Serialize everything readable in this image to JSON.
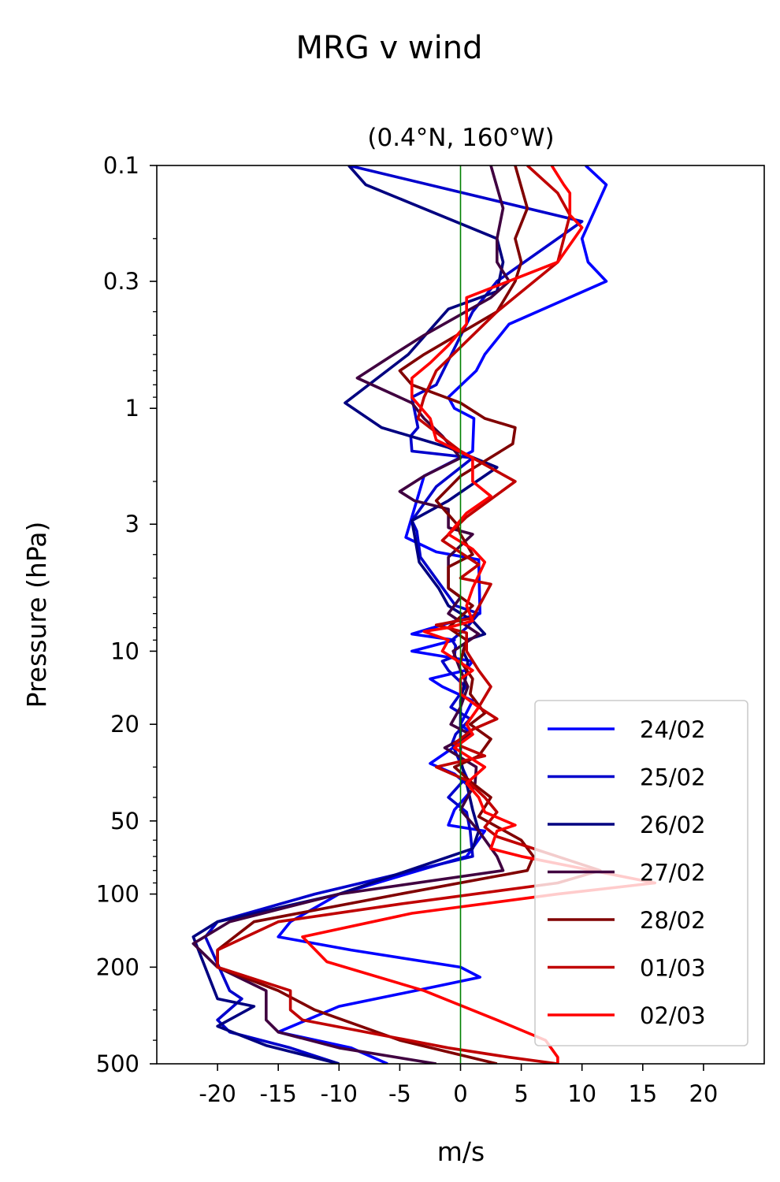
{
  "chart_data": {
    "type": "line",
    "title": "MRG v wind",
    "subtitle": "(0.4°N, 160°W)",
    "xlabel": "m/s",
    "ylabel": "Pressure (hPa)",
    "xlim": [
      -25,
      25
    ],
    "ylim": [
      500,
      0.1
    ],
    "yscale": "log",
    "x_ticks": [
      -20,
      -15,
      -10,
      -5,
      0,
      5,
      10,
      15,
      20
    ],
    "x_tick_labels": [
      "-20",
      "-15",
      "-10",
      "-5",
      "0",
      "5",
      "10",
      "15",
      "20"
    ],
    "y_ticks": [
      0.1,
      0.3,
      1,
      3,
      10,
      20,
      50,
      100,
      200,
      500
    ],
    "y_tick_labels": [
      "0.1",
      "0.3",
      "1",
      "3",
      "10",
      "20",
      "50",
      "100",
      "200",
      "500"
    ],
    "zero_line": {
      "x": 0,
      "color": "#008000"
    },
    "legend_position": "lower-right",
    "series": [
      {
        "name": "24/02",
        "color": "#0000ff",
        "points": [
          [
            10.3,
            0.1
          ],
          [
            12,
            0.12
          ],
          [
            10,
            0.2
          ],
          [
            10.5,
            0.25
          ],
          [
            12,
            0.3
          ],
          [
            4,
            0.45
          ],
          [
            2,
            0.6
          ],
          [
            1.3,
            0.7
          ],
          [
            -1,
            0.9
          ],
          [
            -0.5,
            1
          ],
          [
            1.1,
            1.1
          ],
          [
            1,
            1.5
          ],
          [
            -3,
            1.9
          ],
          [
            -4.5,
            3.4
          ],
          [
            -2,
            3.9
          ],
          [
            1.5,
            4.2
          ],
          [
            1.6,
            7
          ],
          [
            -4,
            8.5
          ],
          [
            -0.5,
            9
          ],
          [
            -4,
            10
          ],
          [
            1,
            11
          ],
          [
            0.4,
            12
          ],
          [
            -2.5,
            13
          ],
          [
            -1.5,
            14
          ],
          [
            1,
            16
          ],
          [
            0,
            20
          ],
          [
            1,
            22
          ],
          [
            -2.5,
            29
          ],
          [
            -0.5,
            32
          ],
          [
            1,
            37
          ],
          [
            -0.5,
            45
          ],
          [
            -1,
            52
          ],
          [
            2,
            55
          ],
          [
            0.5,
            70
          ],
          [
            -10,
            100
          ],
          [
            -14,
            130
          ],
          [
            -15,
            150
          ],
          [
            -9,
            170
          ],
          [
            0,
            200
          ],
          [
            1.6,
            220
          ],
          [
            -2,
            240
          ],
          [
            -10,
            290
          ],
          [
            -15,
            370
          ],
          [
            -9,
            430
          ],
          [
            -6,
            500
          ]
        ]
      },
      {
        "name": "25/02",
        "color": "#0000cc",
        "points": [
          [
            -9.2,
            0.1
          ],
          [
            10,
            0.17
          ],
          [
            3,
            0.3
          ],
          [
            1,
            0.4
          ],
          [
            -2,
            0.8
          ],
          [
            -4,
            0.9
          ],
          [
            -3.5,
            1.2
          ],
          [
            -4.1,
            1.3
          ],
          [
            -4,
            1.5
          ],
          [
            1,
            1.6
          ],
          [
            -2,
            2.1
          ],
          [
            -4,
            2.9
          ],
          [
            -3.6,
            3.2
          ],
          [
            -3.3,
            4.1
          ],
          [
            -0.4,
            6.5
          ],
          [
            1.5,
            7
          ],
          [
            0.5,
            8
          ],
          [
            -0.7,
            9
          ],
          [
            -0.4,
            9.5
          ],
          [
            -0.5,
            10.5
          ],
          [
            -1.5,
            11
          ],
          [
            -1,
            12
          ],
          [
            0.4,
            14
          ],
          [
            -0.8,
            17
          ],
          [
            0.8,
            19
          ],
          [
            -0.4,
            22
          ],
          [
            -0.7,
            24
          ],
          [
            0,
            29
          ],
          [
            0.5,
            33
          ],
          [
            -1,
            40
          ],
          [
            0.5,
            46
          ],
          [
            0.8,
            55
          ],
          [
            1,
            70
          ],
          [
            -12,
            100
          ],
          [
            -20,
            130
          ],
          [
            -21,
            150
          ],
          [
            -19,
            250
          ],
          [
            -18,
            270
          ],
          [
            -20,
            330
          ],
          [
            -19,
            370
          ],
          [
            -14,
            430
          ],
          [
            -10,
            500
          ]
        ]
      },
      {
        "name": "26/02",
        "color": "#000080",
        "points": [
          [
            -9.2,
            0.1
          ],
          [
            -7.8,
            0.12
          ],
          [
            3,
            0.2
          ],
          [
            3.5,
            0.25
          ],
          [
            3,
            0.33
          ],
          [
            -1,
            0.39
          ],
          [
            -4.3,
            0.6
          ],
          [
            -9.5,
            0.95
          ],
          [
            -6.5,
            1.2
          ],
          [
            -1,
            1.45
          ],
          [
            3,
            1.75
          ],
          [
            -1,
            2.4
          ],
          [
            -4,
            2.9
          ],
          [
            -3.8,
            3.3
          ],
          [
            -3.4,
            4.3
          ],
          [
            -1.8,
            5.5
          ],
          [
            -1,
            6.5
          ],
          [
            1,
            7.5
          ],
          [
            2,
            8.5
          ],
          [
            0.5,
            9
          ],
          [
            0.2,
            10
          ],
          [
            0.6,
            11
          ],
          [
            0.4,
            13
          ],
          [
            0,
            16
          ],
          [
            0,
            20
          ],
          [
            0,
            22
          ],
          [
            0,
            28
          ],
          [
            0.5,
            35
          ],
          [
            1,
            45
          ],
          [
            1.5,
            55
          ],
          [
            1,
            65
          ],
          [
            -10,
            100
          ],
          [
            -20,
            130
          ],
          [
            -22,
            150
          ],
          [
            -20,
            270
          ],
          [
            -17,
            290
          ],
          [
            -20,
            350
          ],
          [
            -16,
            420
          ],
          [
            -10,
            500
          ]
        ]
      },
      {
        "name": "27/02",
        "color": "#400040",
        "points": [
          [
            2.5,
            0.1
          ],
          [
            3.5,
            0.15
          ],
          [
            3,
            0.2
          ],
          [
            3,
            0.25
          ],
          [
            4,
            0.3
          ],
          [
            2.5,
            0.35
          ],
          [
            -3,
            0.5
          ],
          [
            -5.5,
            0.6
          ],
          [
            -8.5,
            0.75
          ],
          [
            -4,
            0.95
          ],
          [
            -3,
            1.1
          ],
          [
            -1.5,
            1.3
          ],
          [
            0,
            1.6
          ],
          [
            -3,
            1.9
          ],
          [
            -5,
            2.2
          ],
          [
            -3.8,
            2.4
          ],
          [
            -1,
            2.6
          ],
          [
            -1,
            3.1
          ],
          [
            1,
            3.3
          ],
          [
            -1,
            4.1
          ],
          [
            -1,
            5.5
          ],
          [
            0,
            6
          ],
          [
            -1,
            7
          ],
          [
            1.5,
            8.5
          ],
          [
            -0.6,
            10
          ],
          [
            0,
            12
          ],
          [
            0.6,
            14
          ],
          [
            0,
            17
          ],
          [
            -0.8,
            20
          ],
          [
            0.8,
            22
          ],
          [
            -1.3,
            25
          ],
          [
            1.3,
            30
          ],
          [
            1.2,
            35
          ],
          [
            0,
            45
          ],
          [
            1.5,
            55
          ],
          [
            3,
            70
          ],
          [
            3.5,
            80
          ],
          [
            -10,
            100
          ],
          [
            -19,
            130
          ],
          [
            -22,
            160
          ],
          [
            -20,
            200
          ],
          [
            -16,
            250
          ],
          [
            -16,
            330
          ],
          [
            -15,
            370
          ],
          [
            -10,
            430
          ],
          [
            -2,
            500
          ]
        ]
      },
      {
        "name": "28/02",
        "color": "#800000",
        "points": [
          [
            4.5,
            0.1
          ],
          [
            5.5,
            0.15
          ],
          [
            4.5,
            0.2
          ],
          [
            5,
            0.25
          ],
          [
            4.5,
            0.3
          ],
          [
            3,
            0.4
          ],
          [
            -3,
            0.6
          ],
          [
            -5,
            0.7
          ],
          [
            -4,
            0.8
          ],
          [
            0,
            0.95
          ],
          [
            2,
            1.1
          ],
          [
            4.5,
            1.2
          ],
          [
            4.3,
            1.4
          ],
          [
            0,
            1.9
          ],
          [
            -2,
            2.4
          ],
          [
            -0.3,
            3
          ],
          [
            0,
            3.3
          ],
          [
            1,
            4
          ],
          [
            -1,
            4.5
          ],
          [
            -1,
            5.5
          ],
          [
            1,
            6.5
          ],
          [
            -1,
            8
          ],
          [
            0.5,
            9
          ],
          [
            0,
            11
          ],
          [
            1,
            13
          ],
          [
            0.8,
            15
          ],
          [
            2,
            18
          ],
          [
            0.8,
            20
          ],
          [
            2.5,
            23
          ],
          [
            1.5,
            27
          ],
          [
            -0.5,
            30
          ],
          [
            1,
            35
          ],
          [
            2.5,
            40
          ],
          [
            1.5,
            48
          ],
          [
            5,
            60
          ],
          [
            6,
            70
          ],
          [
            5.5,
            80
          ],
          [
            -5,
            100
          ],
          [
            -17,
            130
          ],
          [
            -20,
            170
          ],
          [
            -20,
            200
          ],
          [
            -15,
            250
          ],
          [
            -12,
            300
          ],
          [
            -5,
            400
          ],
          [
            3,
            500
          ]
        ]
      },
      {
        "name": "01/03",
        "color": "#c00000",
        "points": [
          [
            5.5,
            0.1
          ],
          [
            8,
            0.13
          ],
          [
            9,
            0.16
          ],
          [
            8,
            0.25
          ],
          [
            3,
            0.4
          ],
          [
            -2,
            0.7
          ],
          [
            -3,
            0.9
          ],
          [
            -3.5,
            1.1
          ],
          [
            0,
            1.5
          ],
          [
            4.5,
            2
          ],
          [
            0.5,
            2.8
          ],
          [
            -1.5,
            3.5
          ],
          [
            1.5,
            4.4
          ],
          [
            0,
            5
          ],
          [
            2.5,
            5.3
          ],
          [
            1,
            7.3
          ],
          [
            -2,
            7.8
          ],
          [
            0.5,
            8.4
          ],
          [
            0.5,
            10
          ],
          [
            1.5,
            12
          ],
          [
            2.5,
            14
          ],
          [
            1.5,
            17
          ],
          [
            3,
            19
          ],
          [
            1,
            21
          ],
          [
            -0.5,
            24
          ],
          [
            2,
            27
          ],
          [
            -2,
            30
          ],
          [
            0.5,
            34
          ],
          [
            2,
            40
          ],
          [
            3,
            46
          ],
          [
            2,
            53
          ],
          [
            3,
            58
          ],
          [
            11.5,
            80
          ],
          [
            8,
            90
          ],
          [
            -5,
            110
          ],
          [
            -15,
            130
          ],
          [
            -20,
            170
          ],
          [
            -20,
            200
          ],
          [
            -14,
            250
          ],
          [
            -14,
            300
          ],
          [
            -13,
            330
          ],
          [
            -1,
            430
          ],
          [
            4,
            470
          ],
          [
            8,
            500
          ]
        ]
      },
      {
        "name": "02/03",
        "color": "#ff0000",
        "points": [
          [
            7.5,
            0.1
          ],
          [
            8.5,
            0.12
          ],
          [
            9,
            0.13
          ],
          [
            9,
            0.16
          ],
          [
            10,
            0.18
          ],
          [
            8,
            0.25
          ],
          [
            0.5,
            0.35
          ],
          [
            0.5,
            0.45
          ],
          [
            -1,
            0.55
          ],
          [
            -2.5,
            0.65
          ],
          [
            -4,
            0.75
          ],
          [
            -4,
            0.9
          ],
          [
            -2.5,
            1.1
          ],
          [
            -2,
            1.35
          ],
          [
            1,
            1.6
          ],
          [
            1,
            2
          ],
          [
            2.5,
            2.3
          ],
          [
            0.5,
            2.7
          ],
          [
            -1,
            3.3
          ],
          [
            1,
            3.8
          ],
          [
            2,
            4.3
          ],
          [
            1,
            5.5
          ],
          [
            0.5,
            6.5
          ],
          [
            1,
            7.5
          ],
          [
            -1,
            8
          ],
          [
            -3,
            8.3
          ],
          [
            -1,
            9
          ],
          [
            -1.5,
            10
          ],
          [
            1,
            12
          ],
          [
            0,
            13
          ],
          [
            0,
            15
          ],
          [
            1.5,
            17
          ],
          [
            0.5,
            20
          ],
          [
            1,
            22
          ],
          [
            -0.5,
            25
          ],
          [
            2,
            30
          ],
          [
            0.5,
            35
          ],
          [
            1.5,
            40
          ],
          [
            2,
            46
          ],
          [
            4.5,
            52
          ],
          [
            3,
            55
          ],
          [
            2.5,
            65
          ],
          [
            5,
            70
          ],
          [
            16,
            90
          ],
          [
            8,
            100
          ],
          [
            -4,
            120
          ],
          [
            -13,
            150
          ],
          [
            -11,
            190
          ],
          [
            -3,
            250
          ],
          [
            3,
            330
          ],
          [
            7,
            400
          ],
          [
            8,
            470
          ],
          [
            8,
            500
          ]
        ]
      }
    ]
  }
}
